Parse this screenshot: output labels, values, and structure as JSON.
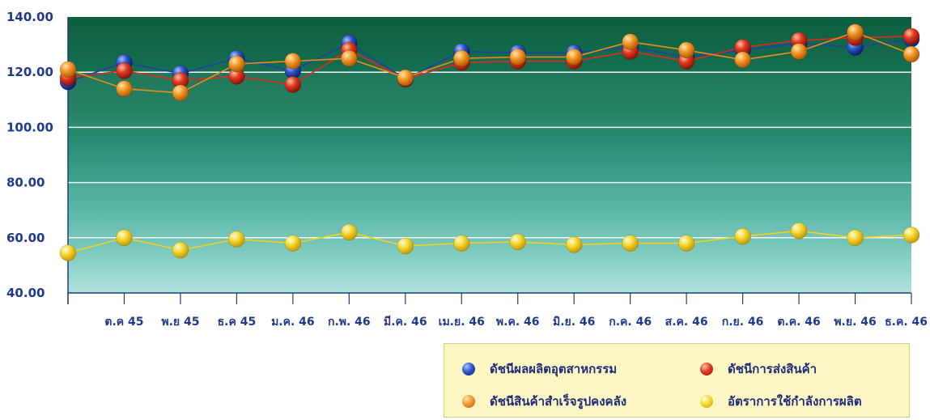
{
  "chart_data": {
    "type": "line",
    "title": "",
    "xlabel": "",
    "ylabel": "",
    "ylim": [
      40,
      140
    ],
    "yticks": [
      "40.00",
      "60.00",
      "80.00",
      "100.00",
      "120.00",
      "140.00"
    ],
    "categories": [
      "",
      "ต.ค 45",
      "พ.ย 45",
      "ธ.ค 45",
      "ม.ค. 46",
      "ก.พ. 46",
      "มี.ค. 46",
      "เม.ย. 46",
      "พ.ค. 46",
      "มิ.ย. 46",
      "ก.ค. 46",
      "ส.ค. 46",
      "ก.ย. 46",
      "ต.ค. 46",
      "พ.ย. 46",
      "ธ.ค. 46"
    ],
    "legend_position": "bottom-right",
    "series": [
      {
        "name": "ดัชนีผลผลิตอุตสาหกรรม",
        "color": "#1f3fa8",
        "values": [
          116.5,
          123.5,
          119.5,
          125.0,
          120.5,
          130.5,
          117.5,
          127.5,
          127.0,
          127.0,
          129.0,
          125.5,
          128.0,
          130.5,
          129.0,
          132.0
        ]
      },
      {
        "name": "ดัชนีการส่งสินค้า",
        "color": "#e02a1c",
        "values": [
          118.0,
          120.5,
          117.0,
          118.5,
          115.5,
          128.0,
          117.5,
          123.5,
          124.0,
          124.0,
          127.5,
          124.0,
          129.0,
          131.5,
          132.5,
          133.0
        ]
      },
      {
        "name": "ดัชนีสินค้าสำเร็จรูปคงคลัง",
        "color": "#f08c1a",
        "values": [
          121.0,
          114.0,
          112.5,
          123.0,
          124.0,
          125.0,
          118.0,
          125.0,
          125.5,
          125.5,
          131.0,
          128.0,
          124.5,
          127.5,
          134.5,
          126.5
        ]
      },
      {
        "name": "อัตราการใช้กำลังการผลิต",
        "color": "#f5d21e",
        "values": [
          54.5,
          60.0,
          55.5,
          59.5,
          58.0,
          62.0,
          57.0,
          58.0,
          58.5,
          57.5,
          58.0,
          58.0,
          60.5,
          62.5,
          60.0,
          61.0
        ]
      }
    ]
  }
}
